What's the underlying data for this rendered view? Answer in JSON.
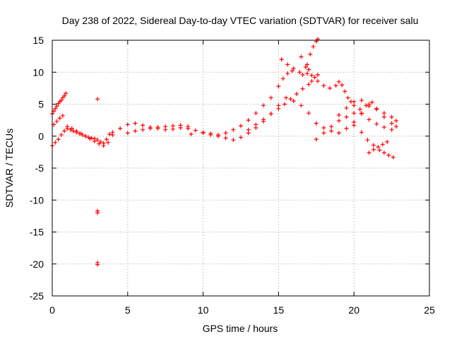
{
  "chart_data": {
    "type": "scatter",
    "title": "Day 238 of 2022, Sidereal Day-to-day VTEC variation (SDTVAR) for receiver salu",
    "xlabel": "GPS time / hours",
    "ylabel": "SDTVAR / TECUs",
    "xlim": [
      0,
      25
    ],
    "ylim": [
      -25,
      15
    ],
    "xticks": [
      0,
      5,
      10,
      15,
      20,
      25
    ],
    "yticks": [
      -25,
      -20,
      -15,
      -10,
      -5,
      0,
      5,
      10,
      15
    ],
    "grid": true,
    "marker": "+",
    "color": "#ff0000",
    "x": [
      0.0,
      0.1,
      0.2,
      0.3,
      0.4,
      0.5,
      0.6,
      0.7,
      0.8,
      0.9,
      1.0,
      1.2,
      1.4,
      1.6,
      1.8,
      2.0,
      2.2,
      2.4,
      2.6,
      2.8,
      3.0,
      3.2,
      3.4,
      3.6,
      3.8,
      4.0,
      4.5,
      5.0,
      5.5,
      6.0,
      6.5,
      7.0,
      7.5,
      8.0,
      8.5,
      9.0,
      9.5,
      10.0,
      10.5,
      11.0,
      11.5,
      12.0,
      12.5,
      13.0,
      13.5,
      14.0,
      14.5,
      15.0,
      15.5,
      16.0,
      16.5,
      17.0,
      17.5,
      18.0,
      18.5,
      19.0,
      19.5,
      20.0,
      20.5,
      21.0,
      21.5,
      22.0,
      22.5,
      22.8,
      0.0,
      0.2,
      0.4,
      0.6,
      0.8,
      1.0,
      1.3,
      1.6,
      1.9,
      2.2,
      2.5,
      2.8,
      3.1,
      3.4,
      3.7,
      4.0,
      5.0,
      5.5,
      6.0,
      6.5,
      7.0,
      7.5,
      8.0,
      8.5,
      9.0,
      0.1,
      0.3,
      0.5,
      0.7,
      9.2,
      10.0,
      10.5,
      11.0,
      11.5,
      12.0,
      12.5,
      13.0,
      13.5,
      14.0,
      14.5,
      15.0,
      15.3,
      15.6,
      15.9,
      13.0,
      13.5,
      14.0,
      14.5,
      15.0,
      15.4,
      15.8,
      16.2,
      16.6,
      16.9,
      17.1,
      17.3,
      17.5,
      17.6,
      16.5,
      16.8,
      16.9,
      17.0,
      17.2,
      17.6,
      18.0,
      18.4,
      18.8,
      19.0,
      19.2,
      19.4,
      19.6,
      19.8,
      20.0,
      20.5,
      21.0,
      21.5,
      22.0,
      22.5,
      17.5,
      18.0,
      18.5,
      19.0,
      19.5,
      20.0,
      20.4,
      20.8,
      21.2,
      17.0,
      17.2,
      17.4,
      17.6,
      19.0,
      19.5,
      20.0,
      20.5,
      21.0,
      21.5,
      22.0,
      22.5,
      22.8,
      20.0,
      20.5,
      20.9,
      21.3,
      21.7,
      22.0,
      22.3,
      22.6,
      21.0,
      21.3,
      21.6,
      21.9,
      22.2,
      3.0,
      3.0,
      3.0,
      3.0,
      3.0,
      15.2,
      15.6,
      16.0,
      16.4,
      16.6
    ],
    "y": [
      3.5,
      3.9,
      4.3,
      4.7,
      5.1,
      5.4,
      5.6,
      6.0,
      6.3,
      6.7,
      1.2,
      1.0,
      0.8,
      0.6,
      0.4,
      0.2,
      0.0,
      -0.2,
      -0.3,
      -0.4,
      -0.6,
      -0.9,
      -1.1,
      -0.5,
      0.3,
      0.6,
      1.2,
      1.8,
      2.0,
      1.7,
      1.4,
      1.2,
      1.0,
      1.1,
      1.3,
      1.2,
      0.9,
      0.5,
      0.2,
      0.0,
      -0.3,
      -0.6,
      -0.2,
      0.5,
      1.3,
      2.3,
      3.5,
      4.8,
      6.0,
      5.5,
      4.8,
      3.6,
      2.0,
      1.3,
      0.8,
      0.5,
      1.2,
      2.2,
      3.5,
      4.7,
      4.2,
      3.0,
      2.0,
      1.5,
      -1.5,
      -1.0,
      -0.5,
      0.2,
      0.8,
      1.5,
      1.2,
      0.8,
      0.4,
      0.0,
      -0.4,
      -0.8,
      -1.2,
      -1.5,
      -1.0,
      0.2,
      0.5,
      0.8,
      1.0,
      1.2,
      1.4,
      1.5,
      1.6,
      1.7,
      1.5,
      1.8,
      2.3,
      2.8,
      3.2,
      0.3,
      0.6,
      0.4,
      0.2,
      0.5,
      1.0,
      1.6,
      2.5,
      3.6,
      4.8,
      6.0,
      7.8,
      9.0,
      9.8,
      10.2,
      1.0,
      1.8,
      2.6,
      3.5,
      4.3,
      5.0,
      5.8,
      6.6,
      7.4,
      11.2,
      12.8,
      14.0,
      14.8,
      15.2,
      12.4,
      10.8,
      9.8,
      10.4,
      9.5,
      8.6,
      7.9,
      7.5,
      7.9,
      8.5,
      8.0,
      7.0,
      6.0,
      5.4,
      4.8,
      3.6,
      2.6,
      1.9,
      1.4,
      1.0,
      -0.5,
      0.5,
      1.5,
      2.4,
      3.0,
      3.6,
      4.2,
      4.8,
      5.3,
      8.1,
      8.6,
      9.2,
      9.6,
      3.3,
      4.4,
      5.4,
      5.6,
      5.0,
      4.3,
      3.6,
      3.0,
      2.4,
      1.7,
      0.6,
      -0.6,
      -1.4,
      -2.2,
      -2.6,
      -3.0,
      -3.3,
      -2.6,
      -2.1,
      -1.7,
      -1.3,
      -0.9,
      5.8,
      -11.7,
      -12.0,
      -19.8,
      -20.1,
      12.0,
      11.2,
      10.6,
      10.0,
      9.6
    ]
  }
}
